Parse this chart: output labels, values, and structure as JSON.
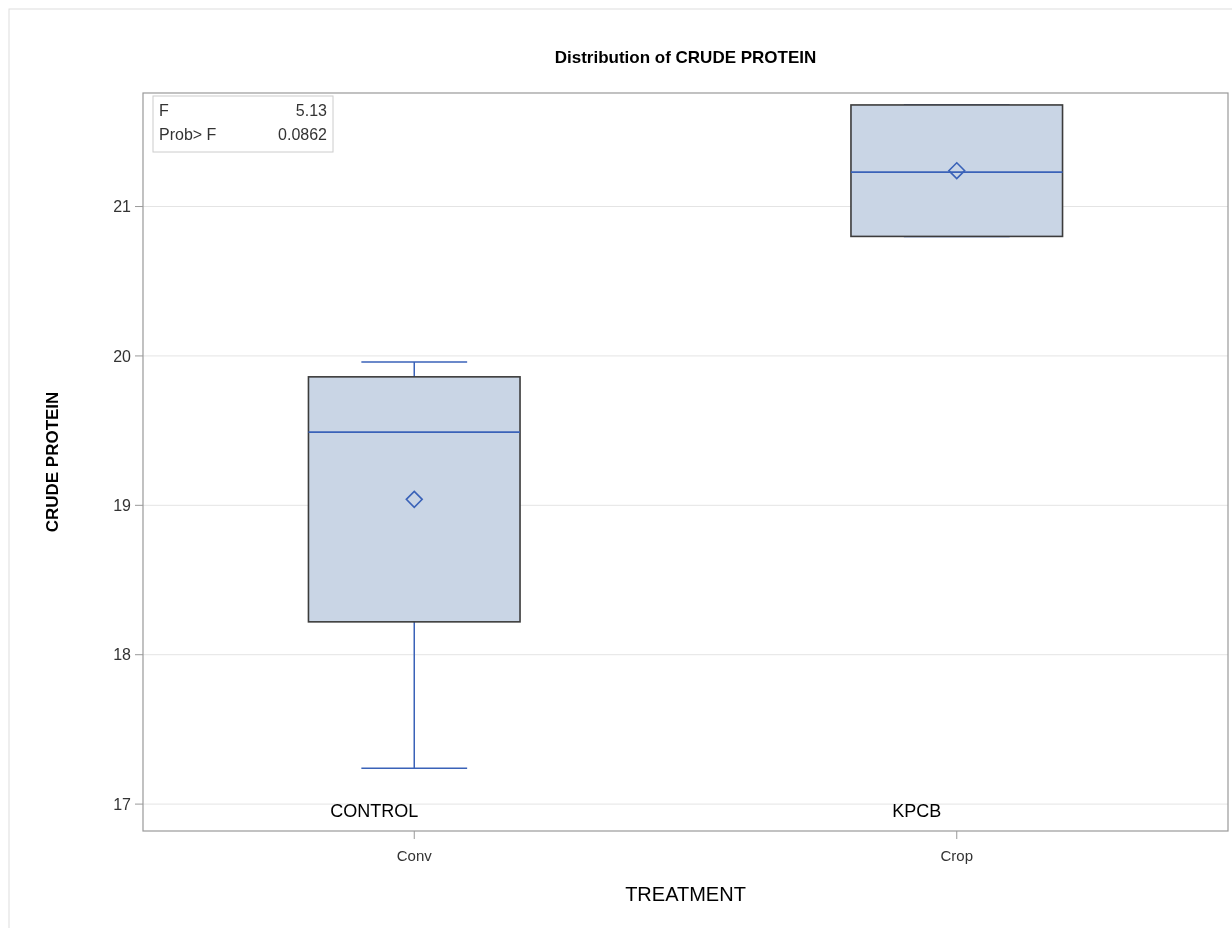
{
  "chart_data": {
    "type": "box",
    "title": "Distribution of CRUDE PROTEIN",
    "xlabel": "TREATMENT",
    "ylabel": "CRUDE PROTEIN",
    "categories": [
      "Conv",
      "Crop"
    ],
    "series": [
      {
        "color": "#c9d5e5",
        "boxes": [
          {
            "low": 17.24,
            "q1": 18.22,
            "median": 19.49,
            "q3": 19.86,
            "high": 19.96,
            "mean": 19.04
          },
          {
            "low": 20.8,
            "q1": 20.8,
            "median": 21.23,
            "q3": 21.68,
            "high": 21.68,
            "mean": 21.24
          }
        ]
      }
    ],
    "ylim": [
      16.82,
      21.76
    ],
    "yticks": [
      17,
      18,
      19,
      20,
      21
    ],
    "grid": "y",
    "marker": "diamond",
    "annotations": [
      "F",
      "5.13",
      "Prob> F",
      "0.0862",
      "CONTROL",
      "KPCB"
    ]
  }
}
